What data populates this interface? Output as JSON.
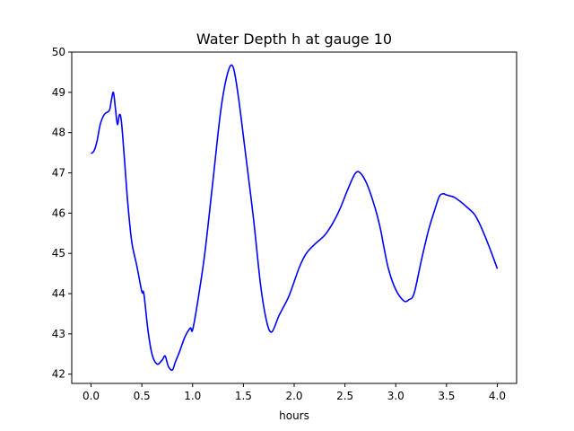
{
  "chart_data": {
    "type": "line",
    "title": "Water Depth h at gauge 10",
    "xlabel": "hours",
    "ylabel": "",
    "xlim": [
      -0.19,
      4.19
    ],
    "ylim": [
      41.77,
      50.0
    ],
    "xticks": [
      0.0,
      0.5,
      1.0,
      1.5,
      2.0,
      2.5,
      3.0,
      3.5,
      4.0
    ],
    "xtick_labels": [
      "0.0",
      "0.5",
      "1.0",
      "1.5",
      "2.0",
      "2.5",
      "3.0",
      "3.5",
      "4.0"
    ],
    "yticks": [
      42,
      43,
      44,
      45,
      46,
      47,
      48,
      49,
      50
    ],
    "ytick_labels": [
      "42",
      "43",
      "44",
      "45",
      "46",
      "47",
      "48",
      "49",
      "50"
    ],
    "grid": false,
    "series": [
      {
        "color": "#0000ff",
        "x": [
          0.0,
          0.03,
          0.06,
          0.09,
          0.13,
          0.18,
          0.2,
          0.22,
          0.24,
          0.26,
          0.28,
          0.3,
          0.33,
          0.36,
          0.4,
          0.45,
          0.5,
          0.52,
          0.56,
          0.6,
          0.65,
          0.7,
          0.73,
          0.76,
          0.8,
          0.83,
          0.87,
          0.92,
          0.95,
          0.98,
          1.0,
          1.05,
          1.12,
          1.2,
          1.28,
          1.35,
          1.4,
          1.45,
          1.52,
          1.6,
          1.67,
          1.73,
          1.78,
          1.85,
          1.95,
          2.05,
          2.12,
          2.2,
          2.3,
          2.38,
          2.45,
          2.53,
          2.6,
          2.65,
          2.72,
          2.8,
          2.85,
          2.88,
          2.93,
          3.0,
          3.08,
          3.13,
          3.18,
          3.25,
          3.32,
          3.38,
          3.43,
          3.47,
          3.5,
          3.57,
          3.63,
          3.7,
          3.78,
          3.85,
          3.93,
          4.0
        ],
        "y": [
          47.48,
          47.55,
          47.8,
          48.2,
          48.45,
          48.55,
          48.8,
          49.0,
          48.6,
          48.2,
          48.45,
          48.25,
          47.3,
          46.3,
          45.3,
          44.7,
          44.05,
          44.0,
          43.1,
          42.5,
          42.25,
          42.35,
          42.45,
          42.2,
          42.1,
          42.3,
          42.55,
          42.9,
          43.05,
          43.15,
          43.1,
          43.8,
          45.0,
          46.8,
          48.6,
          49.52,
          49.62,
          48.9,
          47.5,
          45.85,
          44.2,
          43.3,
          43.05,
          43.45,
          43.95,
          44.65,
          45.0,
          45.22,
          45.45,
          45.75,
          46.1,
          46.6,
          46.98,
          47.0,
          46.7,
          46.1,
          45.6,
          45.2,
          44.6,
          44.1,
          43.82,
          43.85,
          44.0,
          44.8,
          45.55,
          46.05,
          46.42,
          46.48,
          46.45,
          46.4,
          46.3,
          46.15,
          45.95,
          45.6,
          45.1,
          44.62
        ]
      }
    ]
  }
}
